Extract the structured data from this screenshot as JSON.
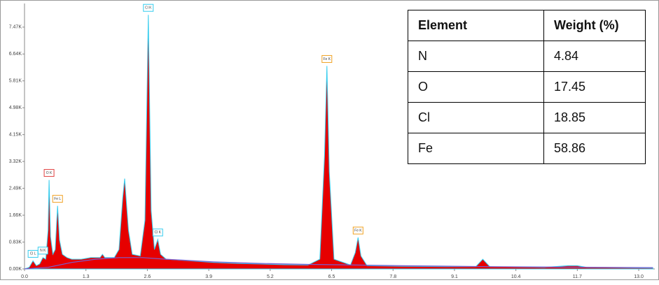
{
  "chart_data": {
    "type": "area",
    "xlim": [
      0,
      13.34
    ],
    "ylim": [
      0,
      8.2
    ],
    "xticks": [
      {
        "value": 0,
        "label": "0.0"
      },
      1.3,
      2.6,
      3.9,
      5.2,
      6.5,
      7.8,
      9.1,
      10.4,
      11.7,
      {
        "value": 13,
        "label": "13.0"
      }
    ],
    "yticks": [
      {
        "value": 0,
        "label": "0.00K"
      },
      {
        "value": 0.83,
        "label": "0.83K"
      },
      {
        "value": 1.66,
        "label": "1.66K"
      },
      {
        "value": 2.49,
        "label": "2.49K"
      },
      {
        "value": 3.32,
        "label": "3.32K"
      },
      {
        "value": 4.15,
        "label": "4.15K"
      },
      {
        "value": 4.98,
        "label": "4.98K"
      },
      {
        "value": 5.81,
        "label": "5.81K"
      },
      {
        "value": 6.64,
        "label": "6.64K"
      },
      {
        "value": 7.47,
        "label": "7.47K"
      }
    ],
    "series": [
      {
        "color": "#e60000",
        "line_color": "#33ccee",
        "x": [
          0.0,
          0.1,
          0.18,
          0.25,
          0.32,
          0.39,
          0.45,
          0.5,
          0.52,
          0.55,
          0.6,
          0.65,
          0.7,
          0.74,
          0.8,
          0.9,
          1.0,
          1.2,
          1.4,
          1.6,
          1.65,
          1.7,
          1.9,
          2.0,
          2.08,
          2.12,
          2.2,
          2.28,
          2.45,
          2.55,
          2.62,
          2.68,
          2.75,
          2.82,
          2.88,
          3.0,
          3.5,
          4.0,
          4.5,
          5.0,
          5.5,
          6.0,
          6.25,
          6.35,
          6.4,
          6.45,
          6.55,
          6.9,
          7.0,
          7.06,
          7.12,
          7.25,
          8.0,
          9.0,
          9.55,
          9.7,
          9.85,
          11.0,
          11.5,
          11.7,
          11.9,
          13.3
        ],
        "values": [
          0,
          0.05,
          0.25,
          0.1,
          0.15,
          0.35,
          0.3,
          1.2,
          2.75,
          1.0,
          0.45,
          0.6,
          1.95,
          0.9,
          0.45,
          0.35,
          0.3,
          0.3,
          0.35,
          0.35,
          0.45,
          0.35,
          0.35,
          0.6,
          2.2,
          2.79,
          1.2,
          0.45,
          0.4,
          1.5,
          7.85,
          1.8,
          0.6,
          0.91,
          0.45,
          0.3,
          0.25,
          0.2,
          0.17,
          0.15,
          0.13,
          0.12,
          0.3,
          3.5,
          6.27,
          3.0,
          0.3,
          0.12,
          0.5,
          0.97,
          0.4,
          0.1,
          0.08,
          0.07,
          0.07,
          0.3,
          0.07,
          0.05,
          0.1,
          0.1,
          0.05,
          0.03
        ]
      },
      {
        "color": "#7a5fd0",
        "x": [
          0,
          0.5,
          1,
          1.5,
          2,
          2.5,
          3,
          4,
          5,
          6,
          7,
          8,
          10,
          13.3
        ],
        "values": [
          0,
          0.05,
          0.2,
          0.3,
          0.35,
          0.35,
          0.3,
          0.22,
          0.17,
          0.14,
          0.12,
          0.1,
          0.07,
          0.04
        ]
      }
    ],
    "annotations": [
      {
        "text": "Cl L",
        "x": 0.18,
        "color": "#33ccee"
      },
      {
        "text": "N K",
        "x": 0.39,
        "color": "#33ccee"
      },
      {
        "text": "O K",
        "x": 0.52,
        "color": "#e04040"
      },
      {
        "text": "Fe L",
        "x": 0.7,
        "color": "#f0a020"
      },
      {
        "text": "Cl K",
        "x": 2.62,
        "color": "#33ccee"
      },
      {
        "text": "Cl K",
        "x": 2.82,
        "color": "#33ccee"
      },
      {
        "text": "Fe K",
        "x": 6.4,
        "color": "#f0a020"
      },
      {
        "text": "Fe K",
        "x": 7.06,
        "color": "#f0a020"
      }
    ]
  },
  "table": {
    "header": [
      "Element",
      "Weight (%)"
    ],
    "rows": [
      [
        "N",
        "4.84"
      ],
      [
        "O",
        "17.45"
      ],
      [
        "Cl",
        "18.85"
      ],
      [
        "Fe",
        "58.86"
      ]
    ]
  }
}
